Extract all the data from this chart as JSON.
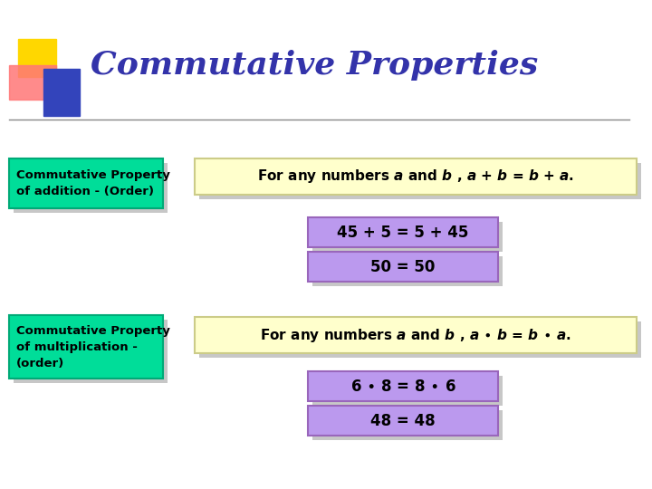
{
  "title": "Commutative Properties",
  "title_color": "#3333AA",
  "title_fontsize": 26,
  "bg_color": "#FFFFFF",
  "green_box_color": "#00DD99",
  "green_box_border_color": "#00AA77",
  "green_box_text_color": "#000000",
  "yellow_box_color": "#FFFFCC",
  "yellow_box_border_color": "#CCCC88",
  "purple_box_color": "#BB99EE",
  "purple_box_border_color": "#9966BB",
  "shadow_color": "#999999",
  "label1": "Commutative Property\nof addition - (Order)",
  "label2": "Commutative Property\nof multiplication -\n(order)",
  "example1a": "45 + 5 = 5 + 45",
  "example1b": "50 = 50",
  "example2a": "6 • 8 = 8 • 6",
  "example2b": "48 = 48",
  "deco_yellow": "#FFD700",
  "deco_red": "#FF7777",
  "deco_blue": "#3344BB",
  "line_color": "#888888"
}
